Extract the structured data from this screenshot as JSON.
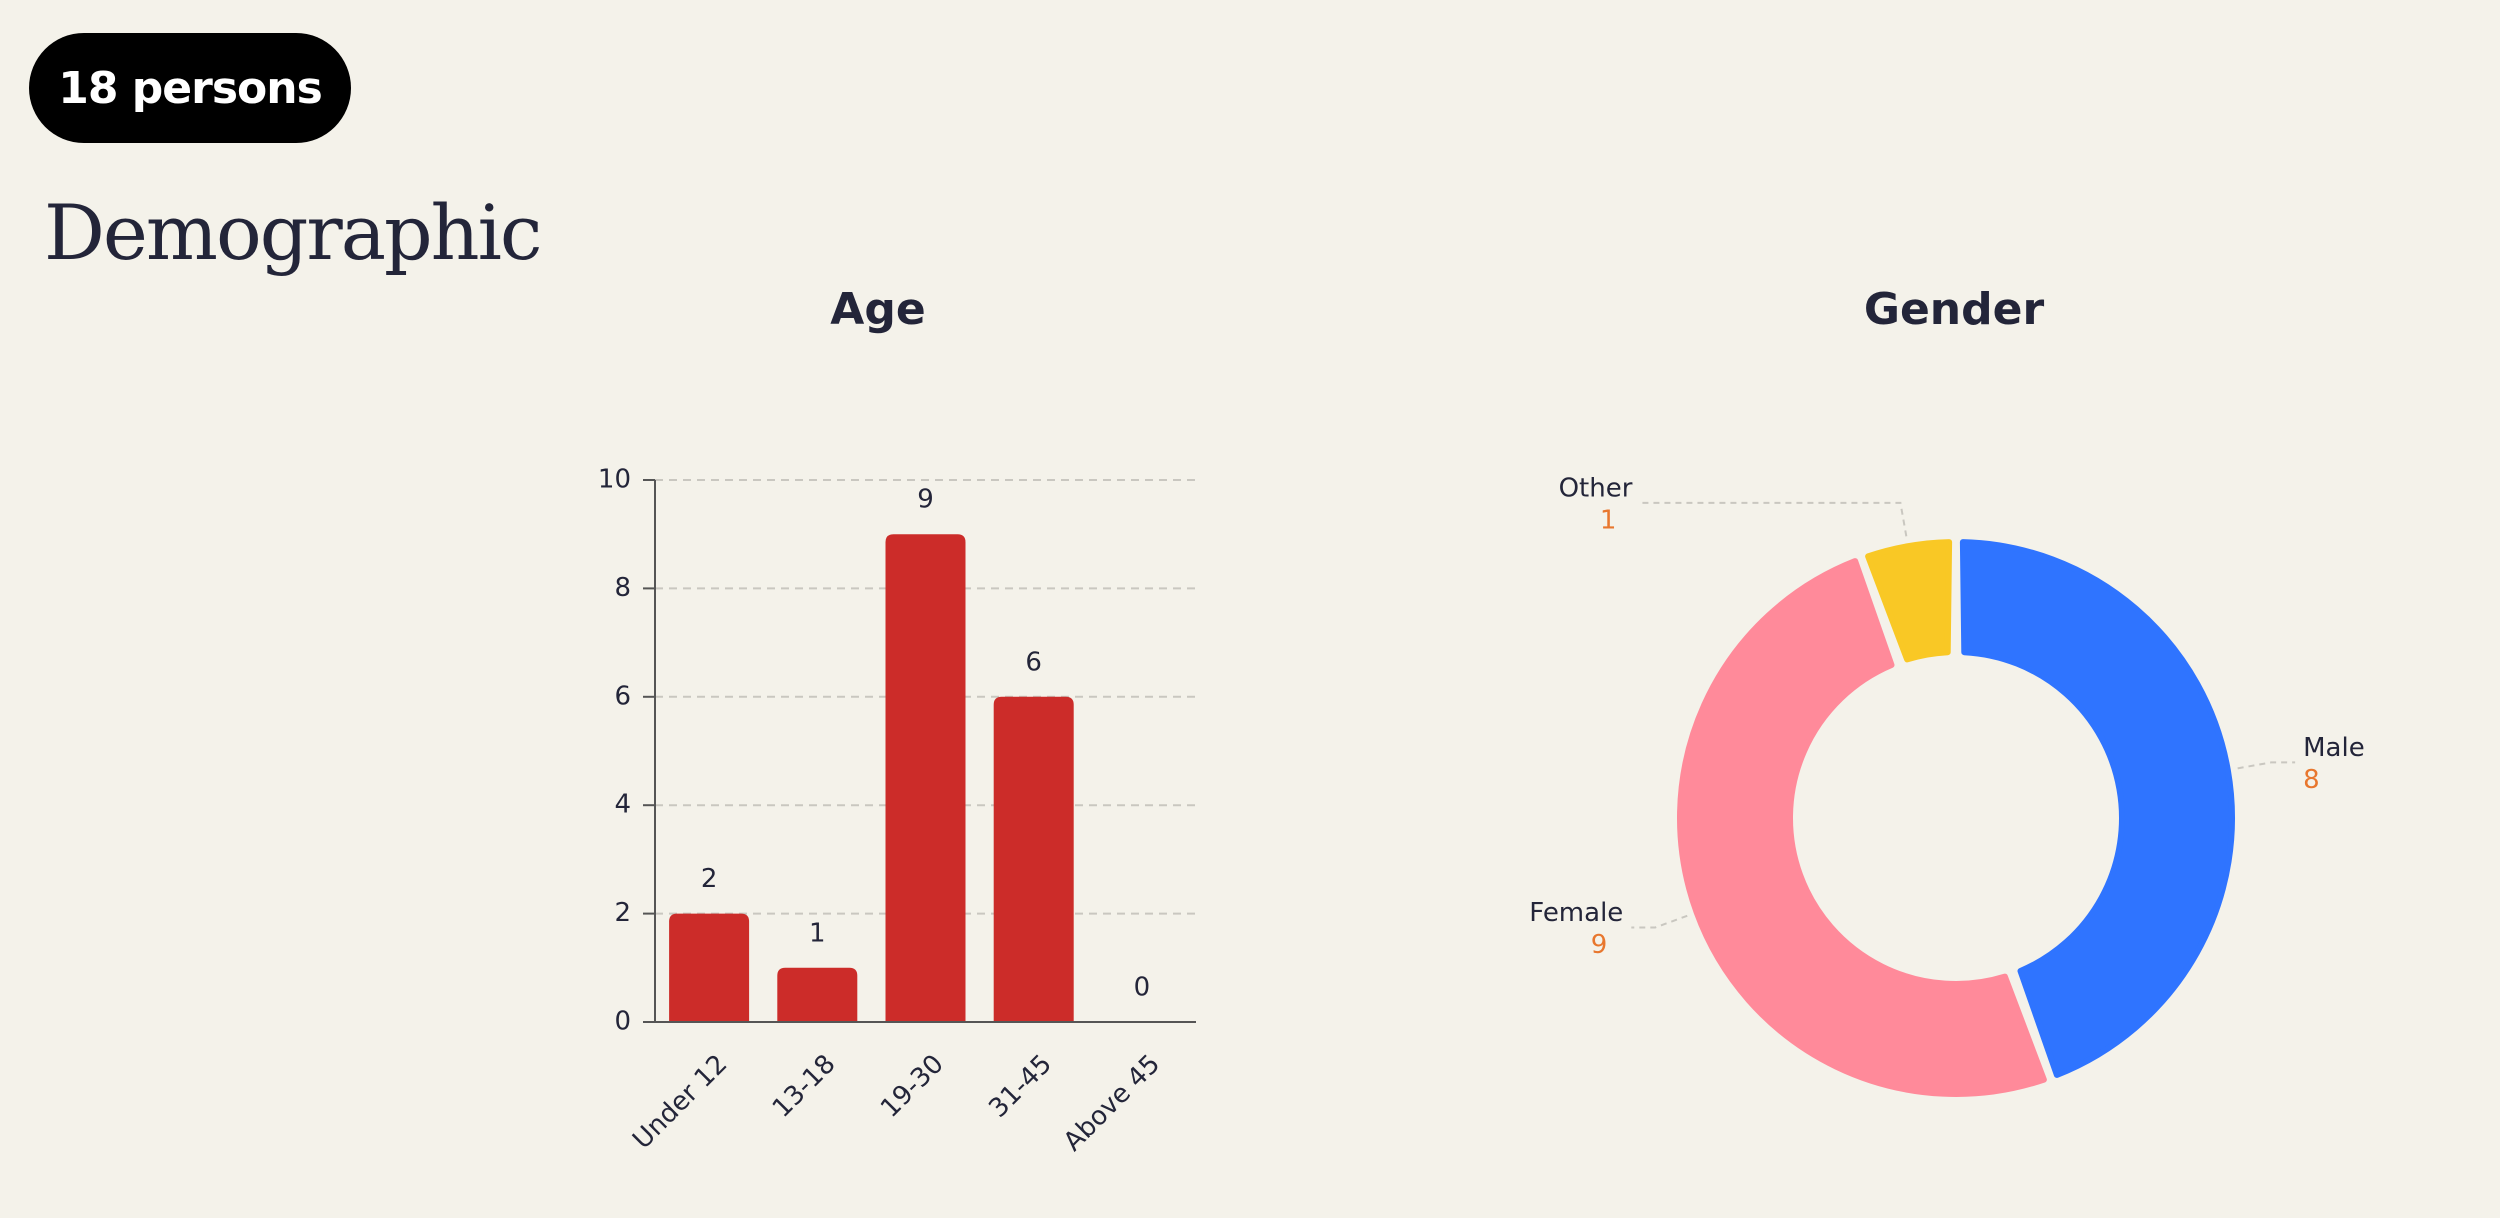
{
  "badge": "18 persons",
  "title": "Demographic",
  "chart_data": [
    {
      "type": "bar",
      "title": "Age",
      "categories": [
        "Under 12",
        "13-18",
        "19-30",
        "31-45",
        "Above 45"
      ],
      "values": [
        2,
        1,
        9,
        6,
        0
      ],
      "color": "#cc2c29",
      "ylim": [
        0,
        10
      ],
      "yticks": [
        0,
        2,
        4,
        6,
        8,
        10
      ],
      "grid": true
    },
    {
      "type": "pie",
      "title": "Gender",
      "categories": [
        "Male",
        "Female",
        "Other"
      ],
      "values": [
        8,
        9,
        1
      ],
      "colors": [
        "#2f74ff",
        "#ff8a9a",
        "#f9c825"
      ],
      "donut": true,
      "value_color": "#e8772e"
    }
  ]
}
